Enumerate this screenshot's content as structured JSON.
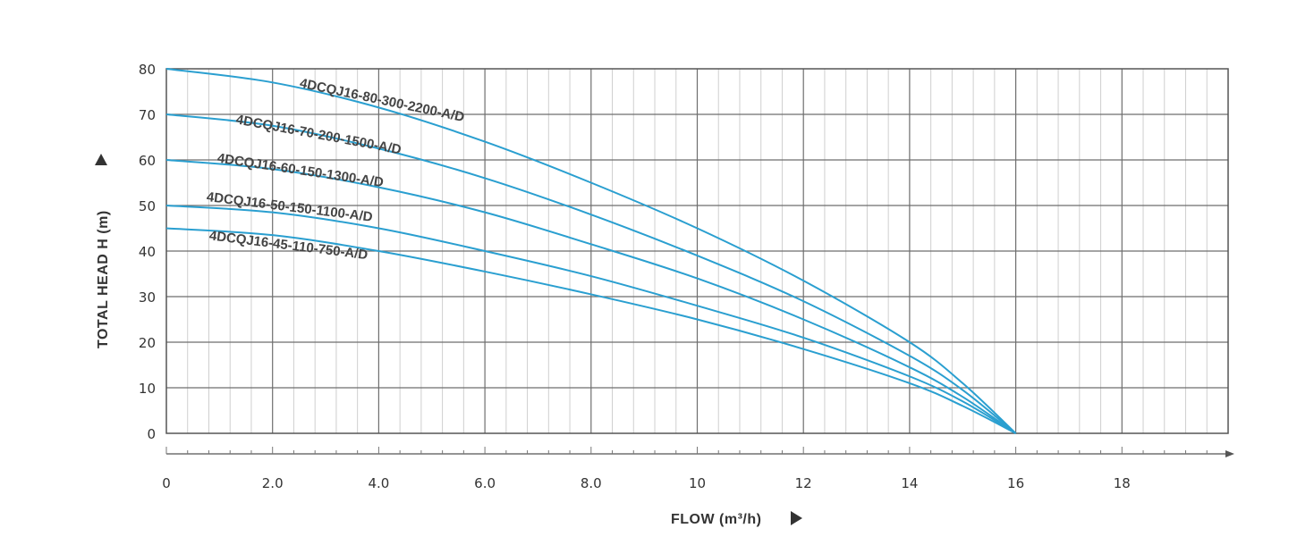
{
  "chart_data": {
    "type": "line",
    "xlabel": "FLOW (m³/h)",
    "ylabel": "TOTAL HEAD H (m)",
    "xlim": [
      0,
      20
    ],
    "ylim": [
      0,
      80
    ],
    "x_ticks": [
      0,
      2,
      4,
      6,
      8,
      10,
      12,
      14,
      16,
      18
    ],
    "x_tick_labels": [
      "0",
      "2.0",
      "4.0",
      "6.0",
      "8.0",
      "10",
      "12",
      "14",
      "16",
      "18"
    ],
    "y_ticks": [
      0,
      10,
      20,
      30,
      40,
      50,
      60,
      70,
      80
    ],
    "y_tick_labels": [
      "0",
      "10",
      "20",
      "30",
      "40",
      "50",
      "60",
      "70",
      "80"
    ],
    "grid": true,
    "line_color": "#2a9fd0",
    "series": [
      {
        "name": "4DCQJ16-80-300-2200-A/D",
        "x": [
          0,
          2,
          4,
          6,
          8,
          10,
          12,
          14,
          15,
          16
        ],
        "y": [
          80,
          77,
          71.5,
          64,
          55,
          45,
          33.5,
          20,
          11,
          0
        ],
        "label_x": 2.5,
        "label_y": 76
      },
      {
        "name": "4DCQJ16-70-200-1500-A/D",
        "x": [
          0,
          2,
          4,
          6,
          8,
          10,
          12,
          14,
          15,
          16
        ],
        "y": [
          70,
          67.5,
          62.5,
          56,
          48,
          39,
          29,
          17,
          9.5,
          0
        ],
        "label_x": 1.3,
        "label_y": 68
      },
      {
        "name": "4DCQJ16-60-150-1300-A/D",
        "x": [
          0,
          2,
          4,
          6,
          8,
          10,
          12,
          14,
          15,
          16
        ],
        "y": [
          60,
          58,
          54,
          48.5,
          41.5,
          34,
          25,
          14.5,
          8,
          0
        ],
        "label_x": 0.95,
        "label_y": 59.5
      },
      {
        "name": "4DCQJ16-50-150-1100-A/D",
        "x": [
          0,
          2,
          4,
          6,
          8,
          10,
          12,
          14,
          15,
          16
        ],
        "y": [
          50,
          48.5,
          45,
          40,
          34.5,
          28,
          21,
          12.5,
          7,
          0
        ],
        "label_x": 0.75,
        "label_y": 51
      },
      {
        "name": "4DCQJ16-45-110-750-A/D",
        "x": [
          0,
          2,
          4,
          6,
          8,
          10,
          12,
          14,
          15,
          16
        ],
        "y": [
          45,
          43.5,
          40,
          35.5,
          30.5,
          25,
          18.5,
          11,
          6,
          0
        ],
        "label_x": 0.8,
        "label_y": 42.5
      }
    ]
  }
}
